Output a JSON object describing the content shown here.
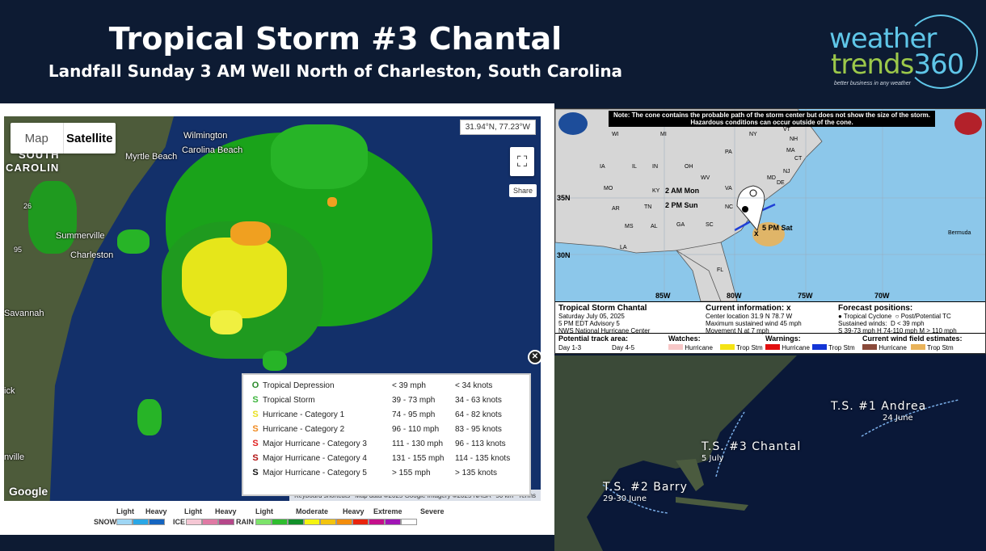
{
  "header": {
    "title": "Tropical Storm #3 Chantal",
    "subtitle": "Landfall Sunday 3 AM Well North of Charleston, South Carolina"
  },
  "logo": {
    "line1": "weather",
    "line2a": "trends",
    "line2b": "360",
    "tagline": "better business in any weather"
  },
  "radar": {
    "map_toggle": {
      "map": "Map",
      "satellite": "Satellite"
    },
    "coords": "31.94°N, 77.23°W",
    "share": "Share",
    "cities": [
      "Wilmington",
      "Carolina Beach",
      "Myrtle Beach",
      "Summerville",
      "Charleston",
      "Savannah",
      "nville",
      "ick"
    ],
    "state_label_1": "SOUTH",
    "state_label_2": "CAROLIN",
    "road_1": "26",
    "road_2": "95",
    "google": "Google",
    "footer": {
      "shortcuts": "Keyboard shortcuts",
      "mapdata": "Map data ©2025 Google Imagery ©2025 NASA",
      "scale": "50 km",
      "terms": "Terms"
    },
    "storm_legend": [
      {
        "symbol": "O",
        "color": "#2a8a2a",
        "name": "Tropical Depression",
        "mph": "< 39 mph",
        "knots": "< 34 knots"
      },
      {
        "symbol": "S",
        "color": "#3cb43c",
        "name": "Tropical Storm",
        "mph": "39 - 73 mph",
        "knots": "34 - 63 knots"
      },
      {
        "symbol": "S",
        "color": "#e8e020",
        "name": "Hurricane - Category 1",
        "mph": "74 - 95 mph",
        "knots": "64 - 82 knots"
      },
      {
        "symbol": "S",
        "color": "#f08a20",
        "name": "Hurricane - Category 2",
        "mph": "96 - 110 mph",
        "knots": "83 - 95 knots"
      },
      {
        "symbol": "S",
        "color": "#e02020",
        "name": "Major Hurricane - Category 3",
        "mph": "111 - 130 mph",
        "knots": "96 - 113 knots"
      },
      {
        "symbol": "S",
        "color": "#b01010",
        "name": "Major Hurricane - Category 4",
        "mph": "131 - 155 mph",
        "knots": "114 - 135 knots"
      },
      {
        "symbol": "S",
        "color": "#111111",
        "name": "Major Hurricane - Category 5",
        "mph": "> 155 mph",
        "knots": "> 135 knots"
      }
    ],
    "precip_legend": {
      "snow": "SNOW",
      "ice": "ICE",
      "rain": "RAIN",
      "light": "Light",
      "heavy": "Heavy",
      "moderate": "Moderate",
      "extreme": "Extreme",
      "severe": "Severe",
      "snow_colors": [
        "#9fd6f4",
        "#2aa7e6",
        "#1565c0"
      ],
      "ice_colors": [
        "#f5c7d4",
        "#e07aa4",
        "#b5488a"
      ],
      "rain_colors": [
        "#7de36b",
        "#2fbd2f",
        "#12902a",
        "#f4f411",
        "#f2c40f",
        "#f38d0c",
        "#e9240c",
        "#c4108a",
        "#a015b5",
        "#ffffff"
      ]
    }
  },
  "nhc": {
    "note": "Note: The cone contains the probable path of the storm center but does not show the size of the storm. Hazardous conditions can occur outside of the cone.",
    "labels": {
      "mon": "2 AM Mon",
      "sun": "2 PM Sun",
      "sat": "5 PM Sat",
      "lat35": "35N",
      "lat30": "30N",
      "lon85": "85W",
      "lon80": "80W",
      "lon75": "75W",
      "lon70": "70W",
      "bermuda": "Bermuda"
    },
    "states": [
      "WI",
      "MI",
      "IA",
      "IL",
      "IN",
      "OH",
      "PA",
      "NY",
      "VT",
      "NH",
      "MA",
      "CT",
      "NJ",
      "MD",
      "DE",
      "WV",
      "VA",
      "MO",
      "KY",
      "TN",
      "NC",
      "AR",
      "MS",
      "AL",
      "GA",
      "SC",
      "LA",
      "FL"
    ],
    "storm_title": "Tropical Storm Chantal",
    "storm_date": "Saturday July 05, 2025",
    "advisory": "5 PM EDT Advisory 5",
    "center_name": "NWS National Hurricane Center",
    "current_h": "Current information:",
    "current_x": "x",
    "center_loc": "Center location 31.9 N 78.7 W",
    "max_wind": "Maximum sustained wind 45 mph",
    "movement": "Movement N at 7 mph",
    "forecast_h": "Forecast positions:",
    "tc": "Tropical Cyclone",
    "post": "Post/Potential TC",
    "sustained": "Sustained winds:",
    "d": "D < 39 mph",
    "winds": "S 39-73 mph  H 74-110 mph  M > 110 mph",
    "track_h": "Potential track area:",
    "day13": "Day 1-3",
    "day45": "Day 4-5",
    "watches_h": "Watches:",
    "warnings_h": "Warnings:",
    "windfield_h": "Current wind field estimates:",
    "hurricane": "Hurricane",
    "trop_stm": "Trop Stm"
  },
  "season": {
    "storms": [
      {
        "name": "T.S. #1 Andrea",
        "dates": "24 June"
      },
      {
        "name": "T.S. #3 Chantal",
        "dates": "5 July"
      },
      {
        "name": "T.S. #2 Barry",
        "dates": "29-30 June"
      }
    ]
  }
}
